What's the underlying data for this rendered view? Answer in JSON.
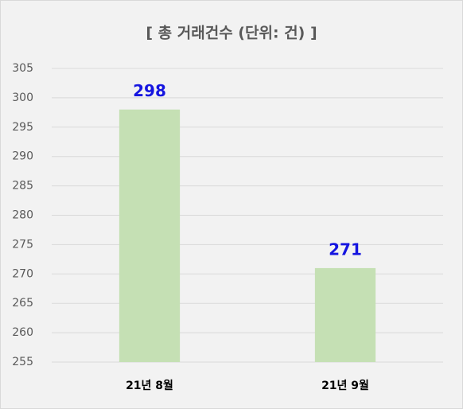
{
  "chart_data": {
    "type": "bar",
    "title": "[ 총 거래건수 (단위: 건) ]",
    "categories": [
      "21년 8월",
      "21년 9월"
    ],
    "values": [
      298,
      271
    ],
    "color": "#c5e0b4",
    "label_color": "#1515e0",
    "ylim": [
      255,
      305
    ],
    "yticks": [
      255,
      260,
      265,
      270,
      275,
      280,
      285,
      290,
      295,
      300,
      305
    ],
    "grid": true
  }
}
